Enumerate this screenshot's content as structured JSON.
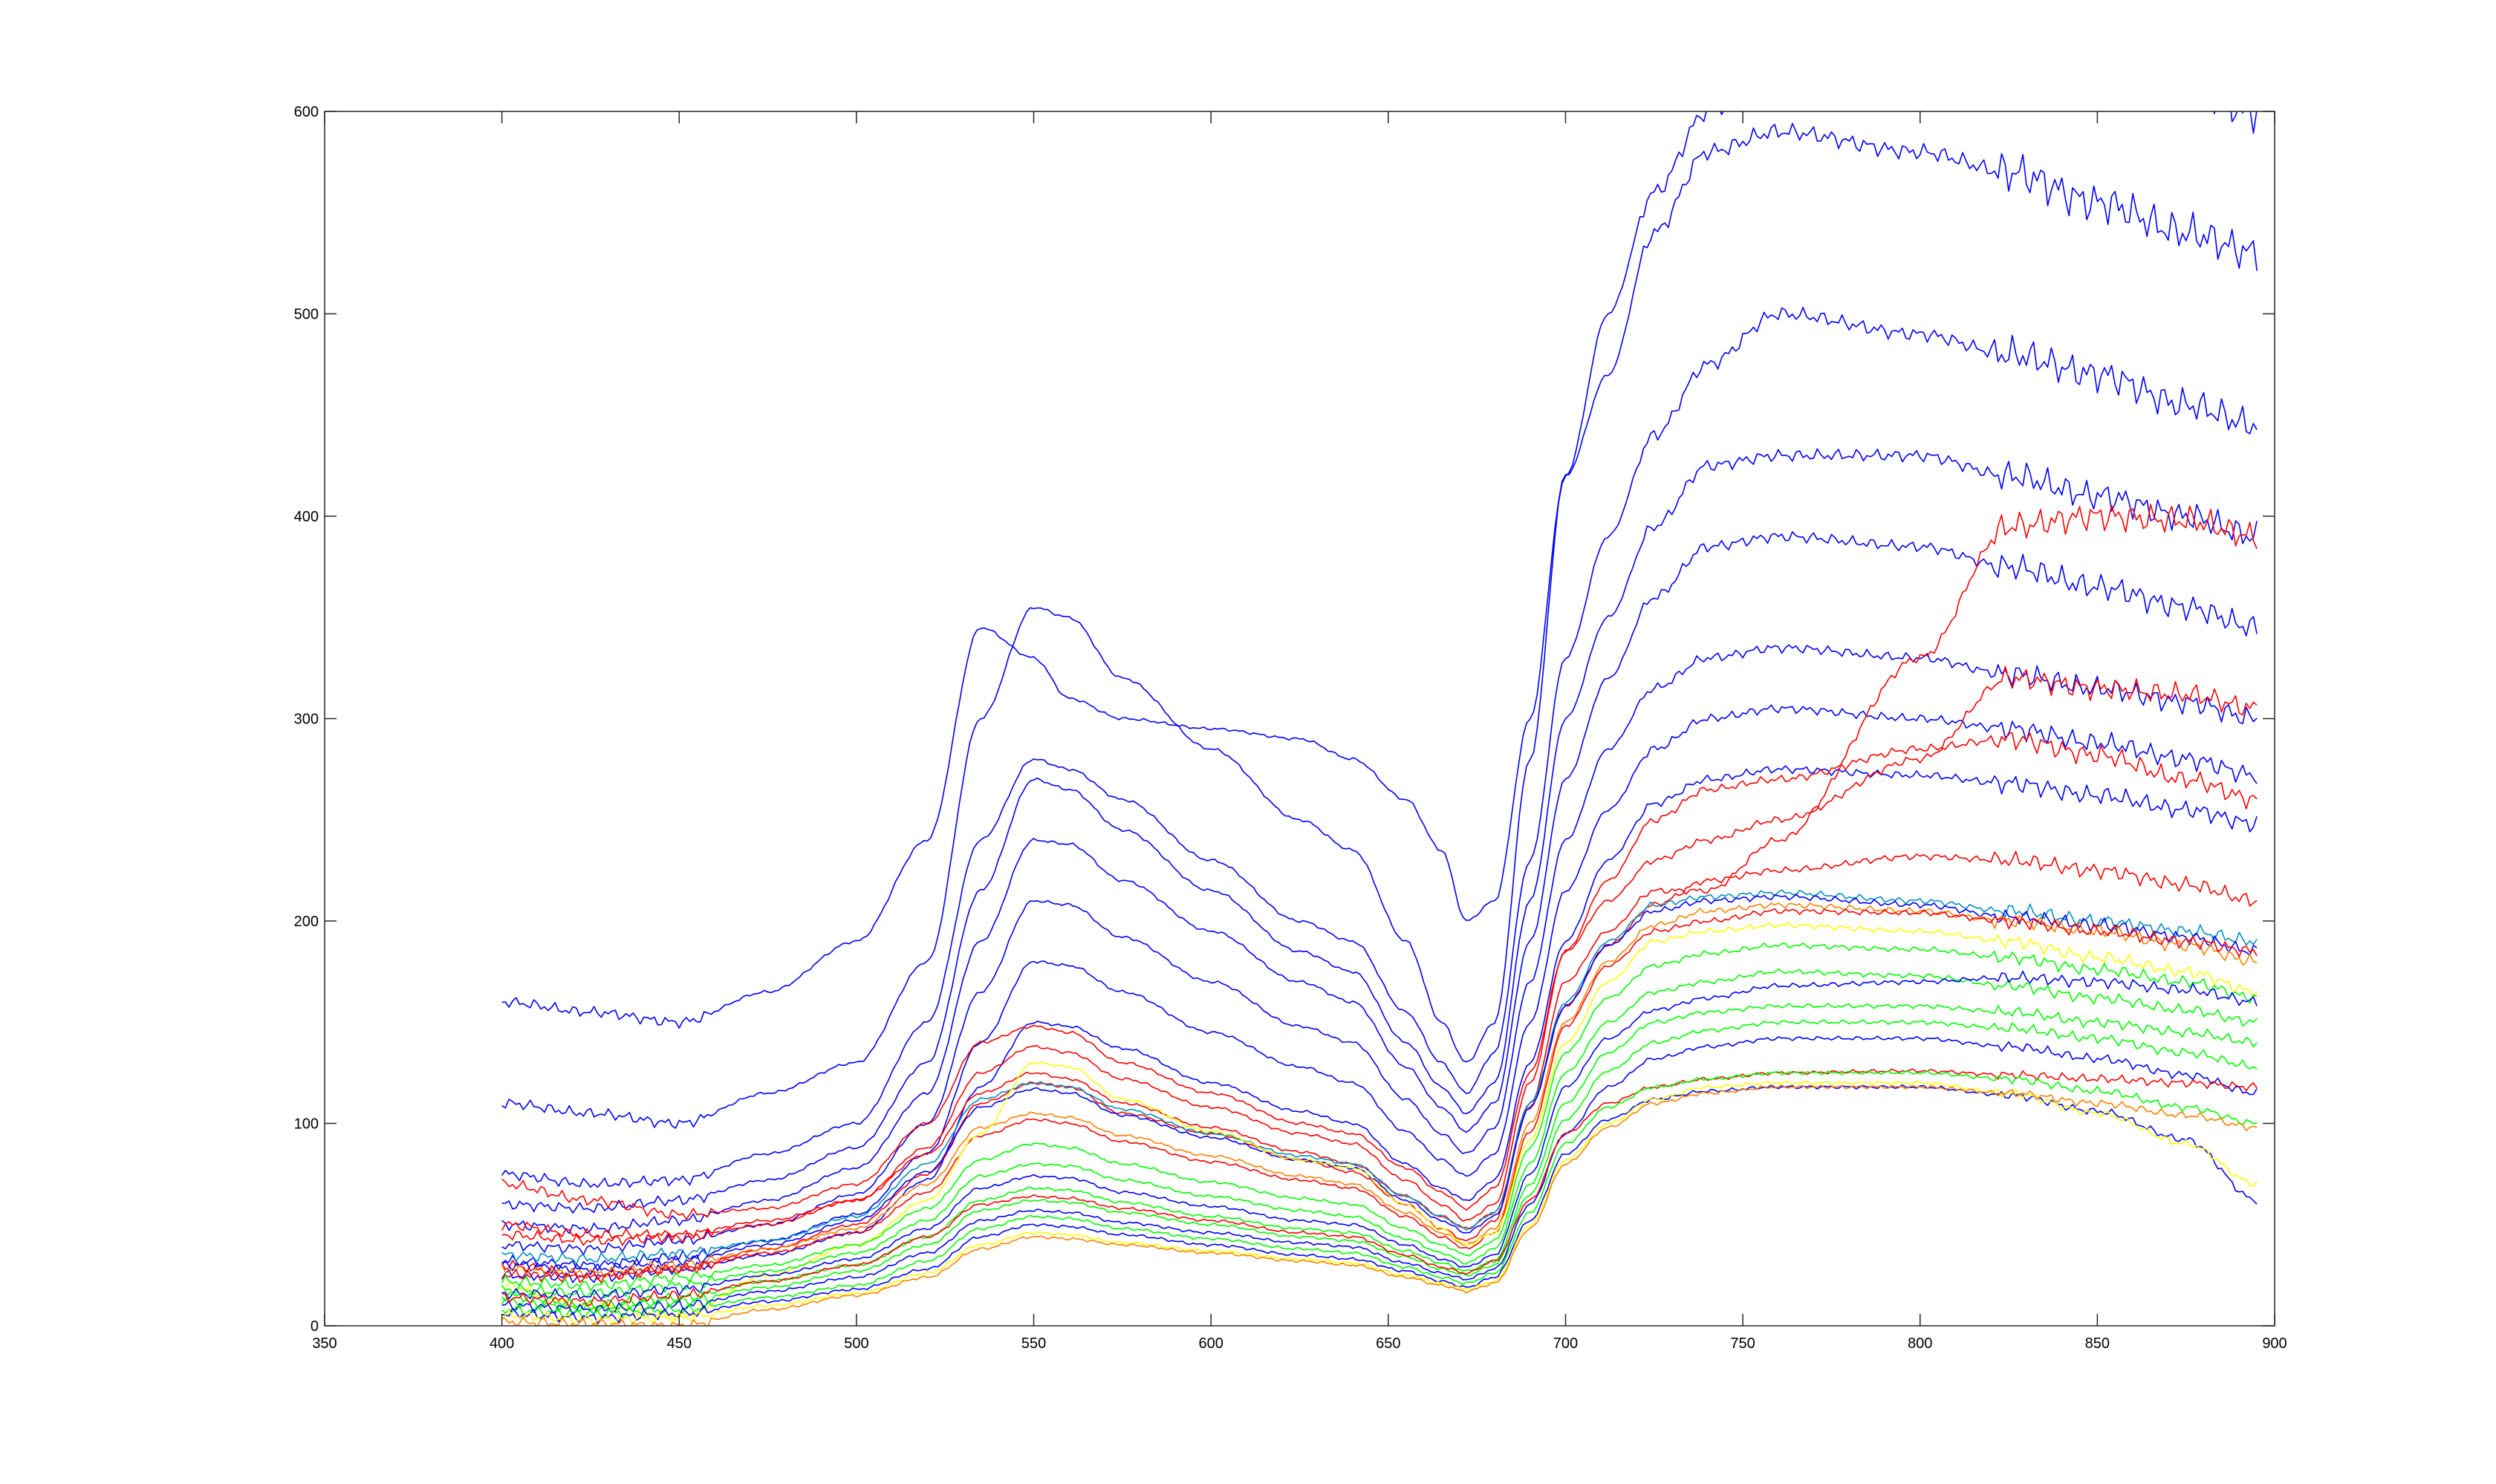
{
  "chart_data": {
    "type": "line",
    "title": "",
    "xlabel": "",
    "ylabel": "",
    "xlim": [
      350,
      900
    ],
    "ylim": [
      0,
      600
    ],
    "grid": false,
    "legend": "none",
    "x_ticks": [
      350,
      400,
      450,
      500,
      550,
      600,
      650,
      700,
      750,
      800,
      850,
      900
    ],
    "y_ticks": [
      0,
      100,
      200,
      300,
      400,
      500,
      600
    ],
    "x_tick_labels": [
      "350",
      "400",
      "450",
      "500",
      "550",
      "600",
      "650",
      "700",
      "750",
      "800",
      "850",
      "900"
    ],
    "y_tick_labels": [
      "0",
      "100",
      "200",
      "300",
      "400",
      "500",
      "600"
    ],
    "colors": {
      "blue": "#0000ff",
      "red": "#ff0000",
      "green": "#00ff00",
      "yellow": "#ffff00",
      "orange": "#ff8000",
      "teal": "#0090c0"
    },
    "x": [
      400,
      425,
      450,
      475,
      500,
      520,
      535,
      550,
      560,
      575,
      600,
      625,
      640,
      655,
      665,
      672,
      680,
      690,
      700,
      712,
      725,
      740,
      760,
      800,
      825,
      850,
      875,
      895
    ],
    "series": [
      {
        "color": "blue",
        "values": [
          160,
          155,
          150,
          165,
          190,
          240,
          345,
          330,
          310,
          300,
          295,
          290,
          280,
          260,
          235,
          200,
          210,
          300,
          420,
          470,
          540,
          580,
          590,
          580,
          570,
          555,
          540,
          530
        ]
      },
      {
        "color": "blue",
        "values": [
          110,
          105,
          100,
          115,
          130,
          180,
          300,
          355,
          350,
          320,
          285,
          250,
          235,
          190,
          150,
          130,
          150,
          280,
          420,
          500,
          560,
          600,
          620,
          620,
          620,
          620,
          610,
          600
        ]
      },
      {
        "color": "blue",
        "values": [
          75,
          70,
          72,
          85,
          100,
          150,
          240,
          280,
          275,
          260,
          230,
          200,
          190,
          155,
          130,
          115,
          135,
          230,
          330,
          390,
          440,
          475,
          500,
          490,
          480,
          470,
          455,
          445
        ]
      },
      {
        "color": "blue",
        "values": [
          60,
          58,
          62,
          72,
          88,
          130,
          215,
          270,
          265,
          245,
          215,
          185,
          175,
          140,
          118,
          105,
          120,
          210,
          300,
          350,
          395,
          425,
          430,
          430,
          420,
          410,
          400,
          390
        ]
      },
      {
        "color": "blue",
        "values": [
          50,
          48,
          52,
          62,
          78,
          115,
          190,
          240,
          238,
          220,
          195,
          170,
          160,
          128,
          108,
          96,
          110,
          190,
          270,
          320,
          360,
          385,
          390,
          385,
          375,
          365,
          355,
          345
        ]
      },
      {
        "color": "blue",
        "values": [
          40,
          38,
          42,
          50,
          65,
          100,
          165,
          210,
          208,
          192,
          170,
          148,
          140,
          112,
          95,
          85,
          98,
          170,
          240,
          285,
          315,
          330,
          335,
          330,
          322,
          315,
          308,
          300
        ]
      },
      {
        "color": "blue",
        "values": [
          32,
          30,
          34,
          42,
          55,
          85,
          140,
          180,
          178,
          165,
          145,
          128,
          120,
          96,
          82,
          74,
          85,
          150,
          215,
          255,
          285,
          300,
          305,
          300,
          295,
          288,
          280,
          272
        ]
      },
      {
        "color": "blue",
        "values": [
          25,
          24,
          28,
          35,
          46,
          72,
          118,
          150,
          148,
          137,
          120,
          106,
          100,
          80,
          68,
          62,
          72,
          130,
          190,
          230,
          258,
          270,
          275,
          272,
          268,
          262,
          255,
          248
        ]
      },
      {
        "color": "red",
        "values": [
          70,
          62,
          55,
          58,
          70,
          100,
          140,
          148,
          145,
          130,
          115,
          100,
          95,
          78,
          66,
          58,
          68,
          125,
          185,
          220,
          250,
          265,
          270,
          285,
          290,
          282,
          270,
          260
        ]
      },
      {
        "color": "red",
        "values": [
          45,
          42,
          44,
          50,
          62,
          88,
          125,
          138,
          135,
          122,
          108,
          95,
          90,
          72,
          60,
          52,
          60,
          120,
          185,
          210,
          230,
          240,
          250,
          280,
          320,
          315,
          312,
          305
        ]
      },
      {
        "color": "red",
        "values": [
          30,
          25,
          28,
          38,
          50,
          75,
          110,
          120,
          118,
          105,
          95,
          82,
          76,
          60,
          48,
          42,
          52,
          110,
          170,
          195,
          215,
          215,
          240,
          330,
          395,
          400,
          398,
          390
        ]
      },
      {
        "color": "red",
        "values": [
          50,
          45,
          45,
          52,
          62,
          85,
          115,
          125,
          122,
          110,
          98,
          86,
          80,
          64,
          54,
          48,
          56,
          108,
          158,
          188,
          208,
          220,
          225,
          232,
          230,
          225,
          218,
          210
        ]
      },
      {
        "color": "teal",
        "values": [
          35,
          33,
          36,
          42,
          54,
          80,
          112,
          120,
          118,
          107,
          95,
          84,
          80,
          64,
          54,
          48,
          56,
          110,
          160,
          190,
          208,
          212,
          214,
          210,
          205,
          200,
          195,
          190
        ]
      },
      {
        "color": "blue",
        "values": [
          30,
          28,
          32,
          40,
          52,
          76,
          108,
          117,
          115,
          104,
          93,
          82,
          78,
          62,
          52,
          46,
          54,
          108,
          158,
          188,
          205,
          210,
          212,
          208,
          202,
          198,
          192,
          185
        ]
      },
      {
        "color": "orange",
        "values": [
          28,
          26,
          30,
          38,
          48,
          70,
          98,
          105,
          103,
          94,
          84,
          74,
          70,
          56,
          46,
          40,
          48,
          100,
          150,
          180,
          198,
          205,
          208,
          205,
          200,
          195,
          188,
          180
        ]
      },
      {
        "color": "red",
        "values": [
          25,
          24,
          28,
          36,
          46,
          66,
          94,
          102,
          100,
          91,
          81,
          72,
          68,
          54,
          44,
          38,
          46,
          96,
          148,
          178,
          195,
          200,
          205,
          204,
          200,
          195,
          190,
          185
        ]
      },
      {
        "color": "yellow",
        "values": [
          20,
          10,
          5,
          25,
          40,
          62,
          95,
          130,
          128,
          112,
          96,
          82,
          78,
          60,
          48,
          40,
          46,
          92,
          140,
          170,
          190,
          195,
          198,
          195,
          190,
          182,
          175,
          165
        ]
      },
      {
        "color": "green",
        "values": [
          22,
          20,
          24,
          30,
          40,
          58,
          82,
          90,
          88,
          80,
          71,
          63,
          60,
          48,
          40,
          35,
          42,
          88,
          135,
          162,
          178,
          184,
          188,
          186,
          182,
          176,
          170,
          162
        ]
      },
      {
        "color": "green",
        "values": [
          18,
          16,
          20,
          27,
          36,
          52,
          74,
          80,
          79,
          72,
          64,
          57,
          54,
          43,
          36,
          31,
          38,
          80,
          125,
          150,
          165,
          170,
          175,
          173,
          168,
          162,
          156,
          150
        ]
      },
      {
        "color": "blue",
        "values": [
          16,
          15,
          18,
          25,
          33,
          48,
          68,
          74,
          73,
          66,
          59,
          52,
          50,
          40,
          33,
          29,
          35,
          75,
          118,
          142,
          156,
          162,
          168,
          170,
          172,
          170,
          166,
          160
        ]
      },
      {
        "color": "green",
        "values": [
          15,
          10,
          14,
          22,
          30,
          44,
          62,
          68,
          67,
          61,
          54,
          48,
          46,
          37,
          31,
          27,
          32,
          70,
          110,
          135,
          150,
          155,
          158,
          158,
          155,
          150,
          145,
          140
        ]
      },
      {
        "color": "green",
        "values": [
          12,
          9,
          12,
          19,
          27,
          40,
          57,
          62,
          61,
          56,
          50,
          44,
          42,
          34,
          28,
          25,
          30,
          65,
          102,
          126,
          140,
          146,
          150,
          150,
          147,
          142,
          135,
          128
        ]
      },
      {
        "color": "blue",
        "values": [
          10,
          8,
          10,
          17,
          24,
          36,
          52,
          57,
          56,
          51,
          46,
          41,
          39,
          31,
          26,
          23,
          28,
          60,
          95,
          118,
          132,
          138,
          142,
          142,
          138,
          132,
          124,
          115
        ]
      },
      {
        "color": "red",
        "values": [
          14,
          12,
          15,
          22,
          30,
          44,
          60,
          64,
          63,
          58,
          52,
          46,
          44,
          35,
          29,
          26,
          32,
          62,
          95,
          110,
          118,
          122,
          125,
          126,
          124,
          122,
          120,
          118
        ]
      },
      {
        "color": "green",
        "values": [
          8,
          6,
          8,
          14,
          20,
          32,
          48,
          54,
          53,
          48,
          43,
          38,
          36,
          29,
          24,
          21,
          26,
          56,
          90,
          108,
          118,
          122,
          125,
          125,
          122,
          116,
          108,
          100
        ]
      },
      {
        "color": "blue",
        "values": [
          6,
          4,
          6,
          12,
          18,
          28,
          44,
          50,
          49,
          45,
          40,
          35,
          33,
          27,
          22,
          19,
          24,
          52,
          85,
          102,
          112,
          116,
          118,
          118,
          114,
          106,
          92,
          62
        ]
      },
      {
        "color": "yellow",
        "values": [
          5,
          3,
          4,
          10,
          16,
          26,
          40,
          46,
          45,
          41,
          37,
          33,
          31,
          25,
          21,
          18,
          22,
          50,
          82,
          100,
          112,
          118,
          120,
          120,
          115,
          105,
          90,
          70
        ]
      },
      {
        "color": "orange",
        "values": [
          2,
          1,
          0,
          8,
          15,
          24,
          38,
          44,
          43,
          40,
          36,
          32,
          30,
          24,
          20,
          17,
          21,
          48,
          80,
          98,
          110,
          115,
          118,
          118,
          115,
          110,
          104,
          98
        ]
      }
    ]
  }
}
